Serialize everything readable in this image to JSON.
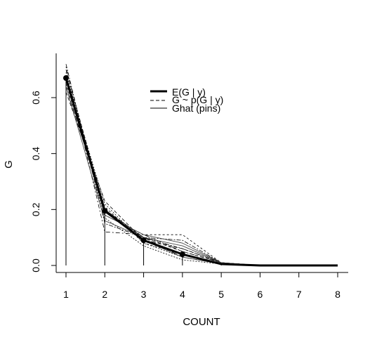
{
  "chart_data": {
    "type": "line",
    "xlabel": "COUNT",
    "ylabel": "G",
    "x_ticks": [
      1,
      2,
      3,
      4,
      5,
      6,
      7,
      8
    ],
    "y_ticks": [
      "0.0",
      "0.2",
      "0.4",
      "0.6"
    ],
    "xlim": [
      1,
      8
    ],
    "ylim": [
      0,
      0.72
    ],
    "grid": false,
    "legend_position": "top-center",
    "legend": [
      {
        "label": "E(G | y)",
        "style": "thick-solid"
      },
      {
        "label": "G ~ p(G | y)",
        "style": "dashed"
      },
      {
        "label": "Ghat (pins)",
        "style": "thin-solid"
      }
    ],
    "expected": {
      "x": [
        1,
        2,
        3,
        4,
        5,
        6,
        7,
        8
      ],
      "values": [
        0.67,
        0.195,
        0.09,
        0.04,
        0.005,
        0.0,
        0.0,
        0.0
      ]
    },
    "pins": {
      "x": [
        1,
        2,
        3,
        4,
        5,
        6,
        7,
        8
      ],
      "values": [
        0.67,
        0.195,
        0.09,
        0.04,
        0.005,
        0.0,
        0.0,
        0.0
      ]
    },
    "posterior_draws": [
      [
        0.7,
        0.2,
        0.1,
        0.05,
        0.01,
        0,
        0,
        0
      ],
      [
        0.68,
        0.22,
        0.08,
        0.03,
        0.005,
        0,
        0,
        0
      ],
      [
        0.72,
        0.15,
        0.1,
        0.06,
        0.01,
        0,
        0,
        0
      ],
      [
        0.66,
        0.18,
        0.11,
        0.11,
        0.01,
        0,
        0,
        0
      ],
      [
        0.64,
        0.2,
        0.1,
        0.03,
        0.005,
        0,
        0,
        0
      ],
      [
        0.71,
        0.12,
        0.11,
        0.05,
        0.01,
        0,
        0,
        0
      ],
      [
        0.62,
        0.23,
        0.09,
        0.06,
        0.01,
        0,
        0,
        0
      ],
      [
        0.69,
        0.17,
        0.07,
        0.02,
        0.005,
        0,
        0,
        0
      ],
      [
        0.67,
        0.19,
        0.1,
        0.09,
        0.01,
        0,
        0,
        0
      ],
      [
        0.65,
        0.21,
        0.08,
        0.04,
        0.005,
        0,
        0,
        0
      ]
    ],
    "ghat_lines": [
      [
        0.66,
        0.2,
        0.09,
        0.03,
        0.005,
        0,
        0,
        0
      ],
      [
        0.68,
        0.18,
        0.11,
        0.08,
        0.01,
        0,
        0,
        0
      ],
      [
        0.64,
        0.16,
        0.1,
        0.07,
        0.01,
        0,
        0,
        0
      ]
    ]
  }
}
